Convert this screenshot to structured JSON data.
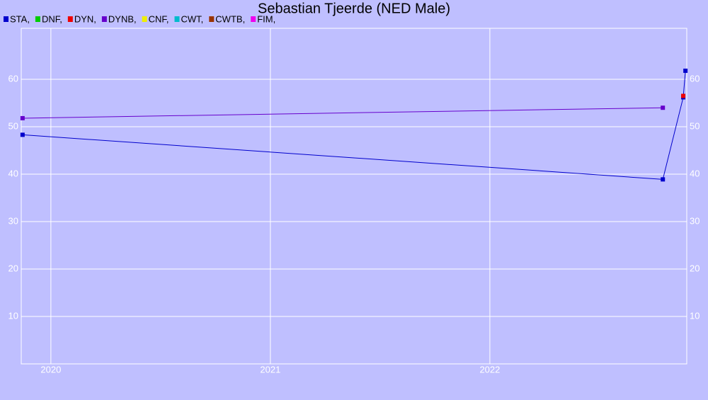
{
  "chart_data": {
    "type": "line",
    "title": "Sebastian Tjeerde (NED Male)",
    "xlim": [
      2019.865,
      2022.897
    ],
    "xticks": [
      2020,
      2021,
      2022
    ],
    "ylim": [
      0,
      70
    ],
    "yticks": [
      10,
      20,
      30,
      40,
      50,
      60
    ],
    "grid": true,
    "legend": "top-left",
    "series": [
      {
        "name": "STA,",
        "color": "#0000cc",
        "x": [
          2019.871,
          2022.788,
          2022.881,
          2022.891
        ],
        "values": [
          48.3,
          38.9,
          56.2,
          61.8
        ]
      },
      {
        "name": "DNF,",
        "color": "#00cc00",
        "x": [],
        "values": []
      },
      {
        "name": "DYN,",
        "color": "#ee0000",
        "x": [
          2022.881
        ],
        "values": [
          56.5
        ]
      },
      {
        "name": "DYNB,",
        "color": "#6600cc",
        "x": [
          2019.871,
          2022.788
        ],
        "values": [
          51.8,
          54.0
        ]
      },
      {
        "name": "CNF,",
        "color": "#eeee00",
        "x": [],
        "values": []
      },
      {
        "name": "CWT,",
        "color": "#00bbcc",
        "x": [],
        "values": []
      },
      {
        "name": "CWTB,",
        "color": "#993300",
        "x": [],
        "values": []
      },
      {
        "name": "FIM,",
        "color": "#ee00ee",
        "x": [],
        "values": []
      }
    ]
  }
}
